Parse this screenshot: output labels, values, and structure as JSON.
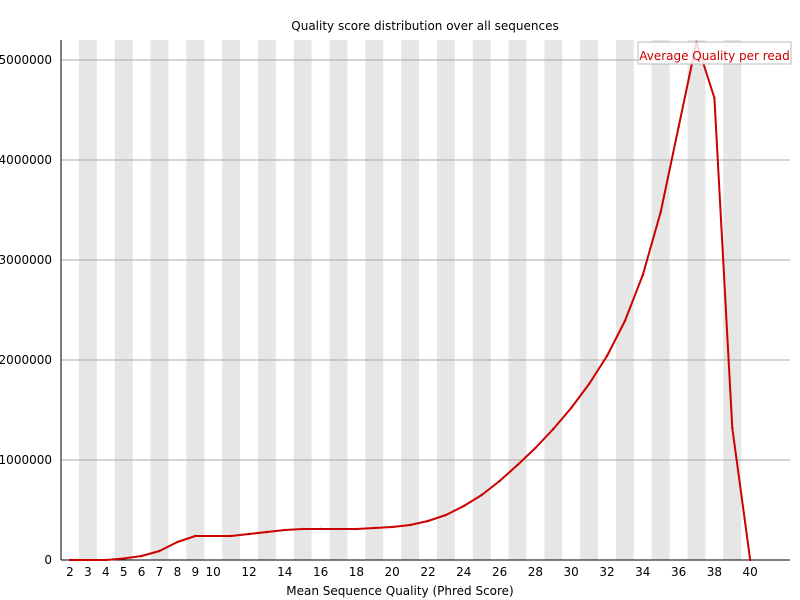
{
  "chart_data": {
    "type": "line",
    "title": "Quality score distribution over all sequences",
    "xlabel": "Mean Sequence Quality (Phred Score)",
    "ylabel": "",
    "xlim": [
      2,
      40
    ],
    "ylim": [
      0,
      5200000
    ],
    "x_tick_labels": [
      "2",
      "3",
      "4",
      "5",
      "6",
      "7",
      "8",
      "9",
      "10",
      "12",
      "14",
      "16",
      "18",
      "20",
      "22",
      "24",
      "26",
      "28",
      "30",
      "32",
      "34",
      "36",
      "38",
      "40"
    ],
    "y_ticks": [
      0,
      1000000,
      2000000,
      3000000,
      4000000,
      5000000
    ],
    "y_tick_labels": [
      "0",
      "1000000",
      "2000000",
      "3000000",
      "4000000",
      "5000000"
    ],
    "grid": true,
    "alternating_bands": true,
    "legend_position": "top-right",
    "series": [
      {
        "name": "Average Quality per read",
        "color": "#cc0000",
        "x": [
          2,
          3,
          4,
          5,
          6,
          7,
          8,
          9,
          10,
          11,
          12,
          13,
          14,
          15,
          16,
          17,
          18,
          19,
          20,
          21,
          22,
          23,
          24,
          25,
          26,
          27,
          28,
          29,
          30,
          31,
          32,
          33,
          34,
          35,
          36,
          37,
          38,
          39,
          40
        ],
        "values": [
          0,
          0,
          0,
          15000,
          40000,
          90000,
          180000,
          240000,
          240000,
          240000,
          260000,
          280000,
          300000,
          310000,
          310000,
          310000,
          310000,
          320000,
          330000,
          350000,
          390000,
          450000,
          540000,
          650000,
          790000,
          950000,
          1120000,
          1310000,
          1520000,
          1760000,
          2040000,
          2390000,
          2850000,
          3480000,
          4330000,
          5180000,
          4620000,
          1320000,
          0
        ]
      }
    ]
  }
}
